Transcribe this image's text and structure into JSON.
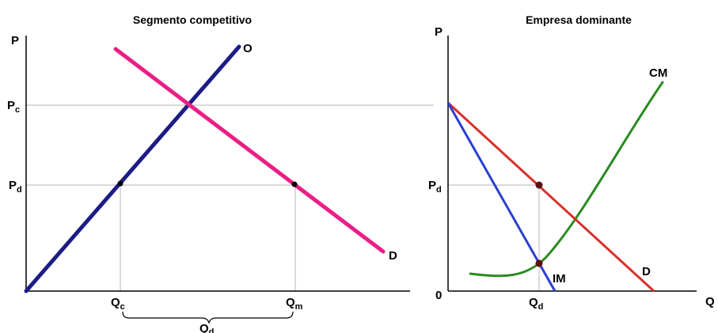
{
  "colors": {
    "supply": "#1c1c86",
    "demand_competitive": "#ea1f86",
    "demand_dominant": "#d8312b",
    "marginal_revenue": "#2a3fd0",
    "marginal_cost": "#2b8a22"
  },
  "left_panel": {
    "title": "Segmento competitivo",
    "y_axis_label": "P",
    "price_levels": [
      {
        "main": "P",
        "sub": "c"
      },
      {
        "main": "P",
        "sub": "d"
      }
    ],
    "quantities": [
      {
        "main": "Q",
        "sub": "c"
      },
      {
        "main": "Q",
        "sub": "m"
      }
    ],
    "bracket_label": {
      "main": "Q",
      "sub": "d"
    },
    "supply_label": "O",
    "demand_label": "D"
  },
  "right_panel": {
    "title": "Empresa dominante",
    "y_axis_label": "P",
    "x_axis_label": "Q",
    "origin_label": "0",
    "price_level": {
      "main": "P",
      "sub": "d"
    },
    "quantity": {
      "main": "Q",
      "sub": "d"
    },
    "marginal_cost_label": "CM",
    "marginal_revenue_label": "IM",
    "demand_label": "D"
  }
}
